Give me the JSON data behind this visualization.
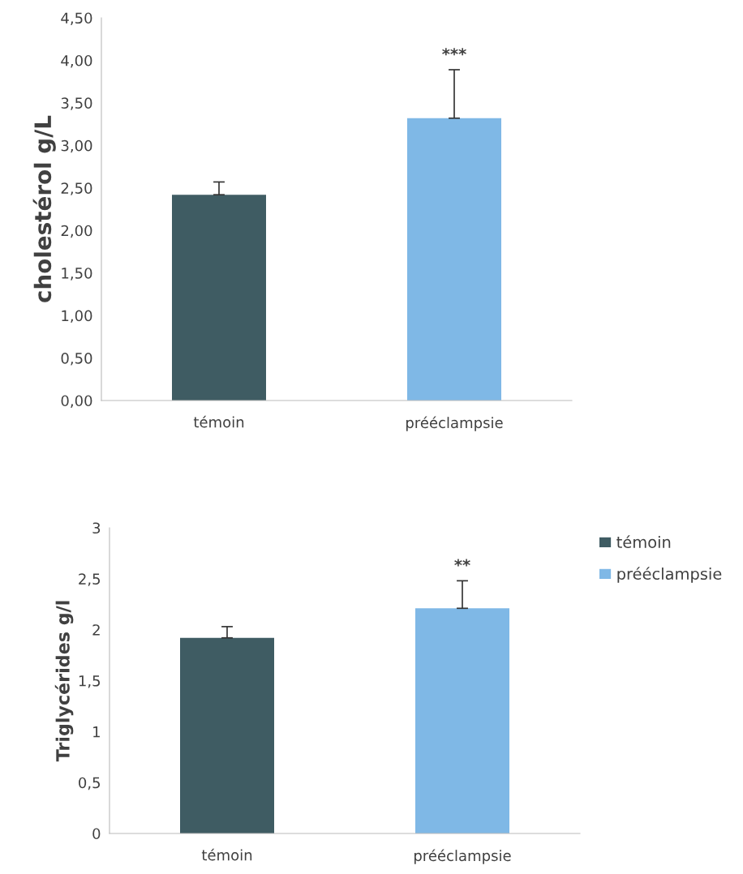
{
  "chart_data": [
    {
      "type": "bar",
      "ylabel": "cholestérol g/L",
      "categories": [
        "témoin",
        "prééclampsie"
      ],
      "series": [
        {
          "color": "#3f5c63",
          "values": [
            2.42,
            null
          ],
          "errors": [
            [
              2.42,
              2.57
            ],
            null
          ]
        },
        {
          "color": "#7fb8e6",
          "values": [
            null,
            3.32
          ],
          "errors": [
            null,
            [
              3.32,
              3.89
            ]
          ]
        }
      ],
      "ylim": [
        0,
        4.5
      ],
      "yticks": [
        {
          "value": 0,
          "label": "0,00"
        },
        {
          "value": 0.5,
          "label": "0,50"
        },
        {
          "value": 1,
          "label": "1,00"
        },
        {
          "value": 1.5,
          "label": "1,50"
        },
        {
          "value": 2,
          "label": "2,00"
        },
        {
          "value": 2.5,
          "label": "2,50"
        },
        {
          "value": 3,
          "label": "3,00"
        },
        {
          "value": 3.5,
          "label": "3,50"
        },
        {
          "value": 4,
          "label": "4,00"
        },
        {
          "value": 4.5,
          "label": "4,50"
        }
      ],
      "annotations": [
        "***"
      ]
    },
    {
      "type": "bar",
      "ylabel": "Triglycérides g/l",
      "categories": [
        "témoin",
        "prééclampsie"
      ],
      "series": [
        {
          "name": "témoin",
          "color": "#3f5c63",
          "values": [
            1.92,
            null
          ],
          "errors": [
            [
              1.92,
              2.03
            ],
            null
          ]
        },
        {
          "name": "prééclampsie",
          "color": "#7fb8e6",
          "values": [
            null,
            2.21
          ],
          "errors": [
            null,
            [
              2.21,
              2.48
            ]
          ]
        }
      ],
      "ylim": [
        0,
        3
      ],
      "yticks": [
        0,
        {
          "value": 0.5,
          "label": "0,5"
        },
        1,
        {
          "value": 1.5,
          "label": "1,5"
        },
        2,
        {
          "value": 2.5,
          "label": "2,5"
        },
        3
      ],
      "annotations": [
        "**"
      ],
      "legend": "right"
    }
  ]
}
